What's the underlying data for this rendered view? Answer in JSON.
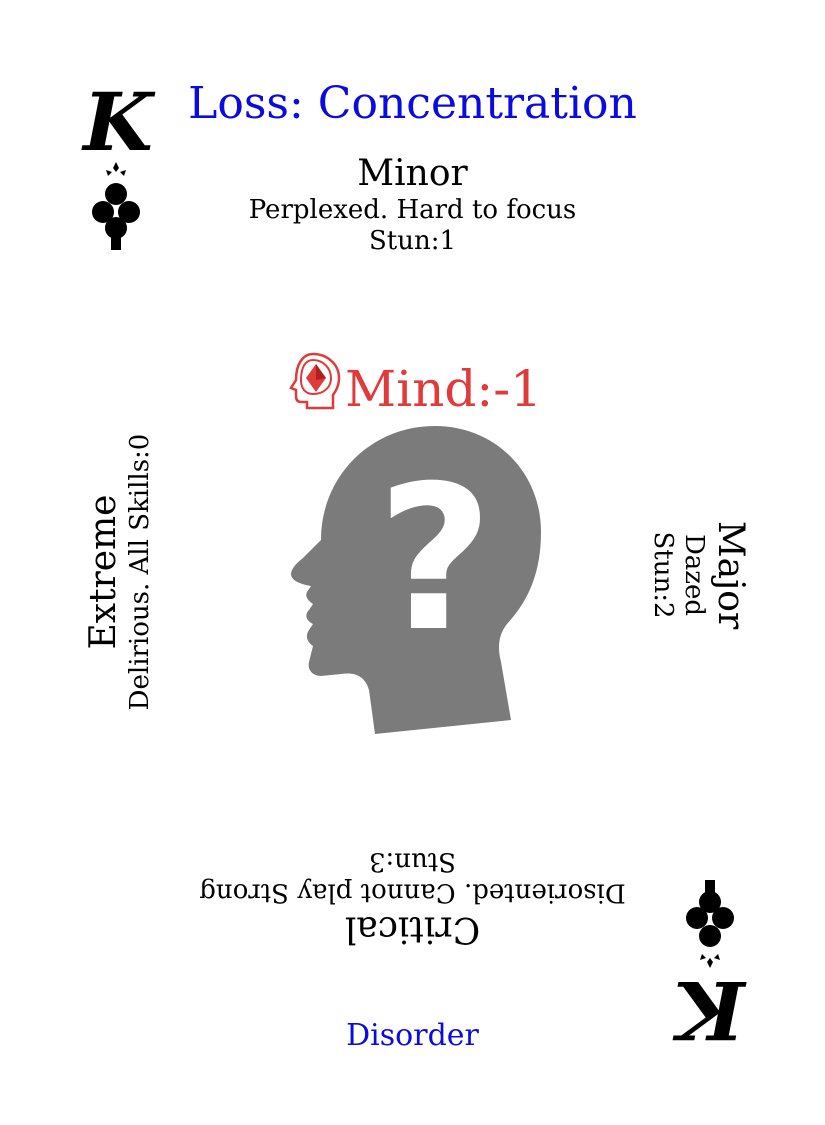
{
  "card": {
    "rank": "K",
    "suit": "clubs",
    "title": "Loss: Concentration",
    "title_color": "#0b0be0",
    "footer": "Disorder",
    "footer_color": "#0b0be0",
    "attribute": "Mind:-1",
    "attribute_color": "#e03a3a",
    "attribute_icon": "mind-head-icon",
    "illustration_icon": "head-question-mark-icon",
    "illustration_color": "#7b7b7b"
  },
  "top": {
    "severity": "Minor",
    "description": "Perplexed. Hard to focus",
    "stun": "Stun:1"
  },
  "right": {
    "severity": "Major",
    "description": "Dazed",
    "stun": "Stun:2"
  },
  "bottom": {
    "severity": "Critical",
    "description": "Disoriented. Cannot play Strong",
    "stun": "Stun:3"
  },
  "left": {
    "severity": "Extreme",
    "description": "Delirious. All Skills:0"
  }
}
